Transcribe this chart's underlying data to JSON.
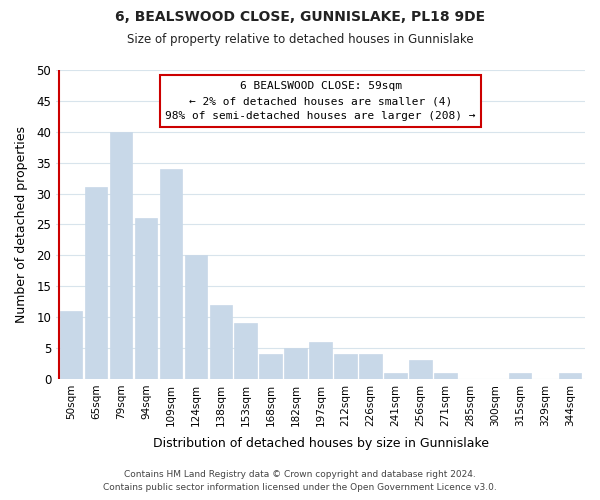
{
  "title": "6, BEALSWOOD CLOSE, GUNNISLAKE, PL18 9DE",
  "subtitle": "Size of property relative to detached houses in Gunnislake",
  "xlabel": "Distribution of detached houses by size in Gunnislake",
  "ylabel": "Number of detached properties",
  "bar_color": "#c8d8e8",
  "bar_edge_color": "#c8d8e8",
  "categories": [
    "50sqm",
    "65sqm",
    "79sqm",
    "94sqm",
    "109sqm",
    "124sqm",
    "138sqm",
    "153sqm",
    "168sqm",
    "182sqm",
    "197sqm",
    "212sqm",
    "226sqm",
    "241sqm",
    "256sqm",
    "271sqm",
    "285sqm",
    "300sqm",
    "315sqm",
    "329sqm",
    "344sqm"
  ],
  "values": [
    11,
    31,
    40,
    26,
    34,
    20,
    12,
    9,
    4,
    5,
    6,
    4,
    4,
    1,
    3,
    1,
    0,
    0,
    1,
    0,
    1
  ],
  "ylim": [
    0,
    50
  ],
  "yticks": [
    0,
    5,
    10,
    15,
    20,
    25,
    30,
    35,
    40,
    45,
    50
  ],
  "annotation_title": "6 BEALSWOOD CLOSE: 59sqm",
  "annotation_line1": "← 2% of detached houses are smaller (4)",
  "annotation_line2": "98% of semi-detached houses are larger (208) →",
  "annotation_box_color": "#ffffff",
  "annotation_box_edge_color": "#cc0000",
  "footer_line1": "Contains HM Land Registry data © Crown copyright and database right 2024.",
  "footer_line2": "Contains public sector information licensed under the Open Government Licence v3.0.",
  "background_color": "#ffffff",
  "grid_color": "#d8e4ec",
  "vertical_line_color": "#cc0000"
}
